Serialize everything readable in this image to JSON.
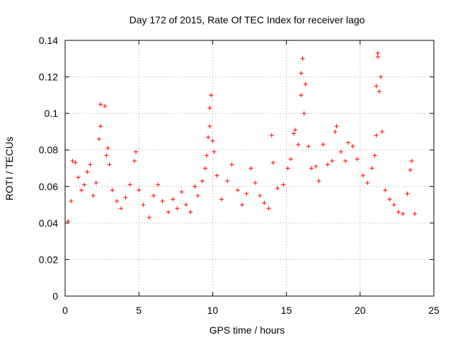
{
  "chart_data": {
    "type": "scatter",
    "title": "Day 172 of 2015, Rate Of TEC Index for receiver lago",
    "xlabel": "GPS time / hours",
    "ylabel": "ROTI / TECUs",
    "xlim": [
      0,
      25
    ],
    "ylim": [
      0,
      0.14
    ],
    "xticks": [
      "0",
      "5",
      "10",
      "15",
      "20",
      "25"
    ],
    "yticks": [
      "0",
      "0.02",
      "0.04",
      "0.06",
      "0.08",
      "0.1",
      "0.12",
      "0.14"
    ],
    "grid": true,
    "marker": "+",
    "color": "#ff0000",
    "points": [
      [
        0.2,
        0.041
      ],
      [
        0.4,
        0.052
      ],
      [
        0.5,
        0.074
      ],
      [
        0.7,
        0.073
      ],
      [
        0.9,
        0.065
      ],
      [
        1.1,
        0.058
      ],
      [
        1.3,
        0.061
      ],
      [
        1.5,
        0.068
      ],
      [
        1.7,
        0.072
      ],
      [
        1.9,
        0.055
      ],
      [
        2.1,
        0.062
      ],
      [
        2.3,
        0.086
      ],
      [
        2.4,
        0.093
      ],
      [
        2.4,
        0.105
      ],
      [
        2.7,
        0.104
      ],
      [
        2.8,
        0.077
      ],
      [
        2.9,
        0.081
      ],
      [
        3.0,
        0.072
      ],
      [
        3.2,
        0.058
      ],
      [
        3.5,
        0.052
      ],
      [
        3.8,
        0.048
      ],
      [
        4.1,
        0.054
      ],
      [
        4.4,
        0.061
      ],
      [
        4.7,
        0.074
      ],
      [
        4.8,
        0.079
      ],
      [
        5.0,
        0.058
      ],
      [
        5.3,
        0.05
      ],
      [
        5.7,
        0.043
      ],
      [
        6.0,
        0.055
      ],
      [
        6.3,
        0.061
      ],
      [
        6.6,
        0.052
      ],
      [
        7.0,
        0.046
      ],
      [
        7.3,
        0.053
      ],
      [
        7.6,
        0.048
      ],
      [
        7.9,
        0.057
      ],
      [
        8.2,
        0.05
      ],
      [
        8.5,
        0.046
      ],
      [
        8.8,
        0.06
      ],
      [
        9.0,
        0.055
      ],
      [
        9.3,
        0.063
      ],
      [
        9.5,
        0.07
      ],
      [
        9.6,
        0.077
      ],
      [
        9.7,
        0.087
      ],
      [
        9.8,
        0.093
      ],
      [
        9.8,
        0.103
      ],
      [
        9.9,
        0.11
      ],
      [
        10.0,
        0.085
      ],
      [
        10.1,
        0.079
      ],
      [
        10.3,
        0.066
      ],
      [
        10.6,
        0.053
      ],
      [
        11.0,
        0.063
      ],
      [
        11.3,
        0.072
      ],
      [
        11.7,
        0.058
      ],
      [
        12.0,
        0.05
      ],
      [
        12.3,
        0.056
      ],
      [
        12.6,
        0.07
      ],
      [
        12.9,
        0.062
      ],
      [
        13.2,
        0.055
      ],
      [
        13.5,
        0.051
      ],
      [
        13.8,
        0.048
      ],
      [
        14.0,
        0.088
      ],
      [
        14.1,
        0.073
      ],
      [
        14.4,
        0.059
      ],
      [
        14.8,
        0.061
      ],
      [
        15.1,
        0.07
      ],
      [
        15.3,
        0.075
      ],
      [
        15.5,
        0.089
      ],
      [
        15.6,
        0.091
      ],
      [
        15.8,
        0.083
      ],
      [
        16.0,
        0.11
      ],
      [
        16.0,
        0.122
      ],
      [
        16.1,
        0.13
      ],
      [
        16.2,
        0.1
      ],
      [
        16.3,
        0.116
      ],
      [
        16.5,
        0.082
      ],
      [
        16.7,
        0.07
      ],
      [
        17.0,
        0.071
      ],
      [
        17.2,
        0.063
      ],
      [
        17.5,
        0.083
      ],
      [
        17.8,
        0.072
      ],
      [
        18.1,
        0.074
      ],
      [
        18.3,
        0.09
      ],
      [
        18.4,
        0.093
      ],
      [
        18.7,
        0.079
      ],
      [
        19.0,
        0.074
      ],
      [
        19.2,
        0.084
      ],
      [
        19.5,
        0.082
      ],
      [
        19.8,
        0.075
      ],
      [
        20.2,
        0.066
      ],
      [
        20.5,
        0.062
      ],
      [
        20.8,
        0.07
      ],
      [
        21.0,
        0.077
      ],
      [
        21.1,
        0.088
      ],
      [
        21.1,
        0.115
      ],
      [
        21.2,
        0.131
      ],
      [
        21.2,
        0.133
      ],
      [
        21.3,
        0.112
      ],
      [
        21.4,
        0.12
      ],
      [
        21.5,
        0.09
      ],
      [
        21.7,
        0.058
      ],
      [
        22.0,
        0.053
      ],
      [
        22.3,
        0.05
      ],
      [
        22.6,
        0.046
      ],
      [
        22.9,
        0.045
      ],
      [
        23.2,
        0.056
      ],
      [
        23.4,
        0.069
      ],
      [
        23.5,
        0.074
      ],
      [
        23.7,
        0.045
      ]
    ]
  }
}
